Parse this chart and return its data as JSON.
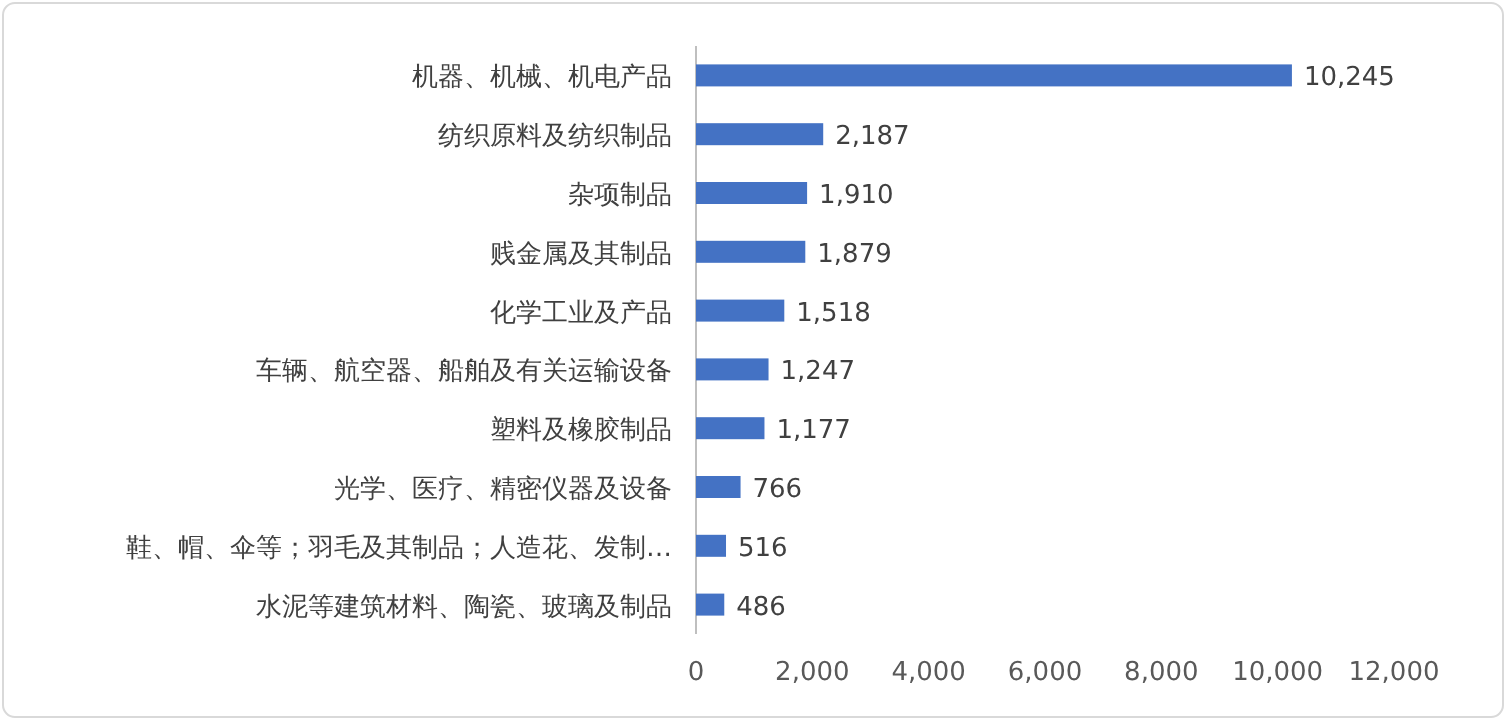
{
  "chart_data": {
    "type": "bar",
    "orientation": "horizontal",
    "categories": [
      "机器、机械、机电产品",
      "纺织原料及纺织制品",
      "杂项制品",
      "贱金属及其制品",
      "化学工业及产品",
      "车辆、航空器、船舶及有关运输设备",
      "塑料及橡胶制品",
      "光学、医疗、精密仪器及设备",
      "鞋、帽、伞等；羽毛及其制品；人造花、发制…",
      "水泥等建筑材料、陶瓷、玻璃及制品"
    ],
    "values": [
      10245,
      2187,
      1910,
      1879,
      1518,
      1247,
      1177,
      766,
      516,
      486
    ],
    "value_labels": [
      "10,245",
      "2,187",
      "1,910",
      "1,879",
      "1,518",
      "1,247",
      "1,177",
      "766",
      "516",
      "486"
    ],
    "color": "#4472c4",
    "xlim": [
      0,
      12000
    ],
    "xticks": [
      0,
      {
        "value": 2000,
        "label": "2,000"
      },
      {
        "value": 4000,
        "label": "4,000"
      },
      {
        "value": 6000,
        "label": "6,000"
      },
      {
        "value": 8000,
        "label": "8,000"
      },
      {
        "value": 10000,
        "label": "10,000"
      },
      {
        "value": 12000,
        "label": "12,000"
      }
    ]
  }
}
